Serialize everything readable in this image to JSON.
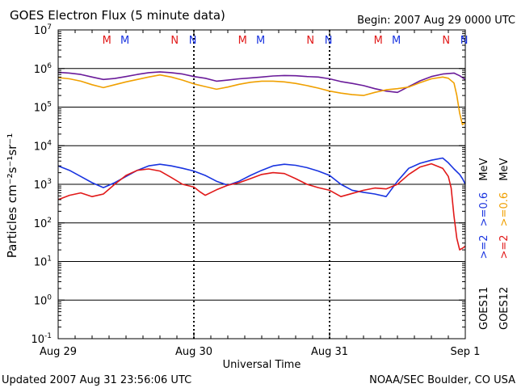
{
  "chart_data": {
    "type": "line",
    "title": "GOES Electron Flux (5 minute data)",
    "begin_label": "Begin: 2007 Aug 29 0000 UTC",
    "ylabel": "Particles cm⁻²s⁻¹sr⁻¹",
    "xlabel": "Universal Time",
    "footer_left": "Updated 2007 Aug 31 23:56:06 UTC",
    "footer_right": "NOAA/SEC Boulder, CO USA",
    "y_scale": "log",
    "ylim": [
      0.1,
      10000000
    ],
    "y_ticks": [
      {
        "base": "10",
        "exp": "7",
        "value": 10000000
      },
      {
        "base": "10",
        "exp": "6",
        "value": 1000000
      },
      {
        "base": "10",
        "exp": "5",
        "value": 100000
      },
      {
        "base": "10",
        "exp": "4",
        "value": 10000
      },
      {
        "base": "10",
        "exp": "3",
        "value": 1000
      },
      {
        "base": "10",
        "exp": "2",
        "value": 100
      },
      {
        "base": "10",
        "exp": "1",
        "value": 10
      },
      {
        "base": "10",
        "exp": "0",
        "value": 1
      },
      {
        "base": "10",
        "exp": "-1",
        "value": 0.1
      }
    ],
    "x_range_hours": [
      0,
      72
    ],
    "x_ticks": [
      {
        "label": "Aug 29",
        "hour": 0
      },
      {
        "label": "Aug 30",
        "hour": 24
      },
      {
        "label": "Aug 31",
        "hour": 48
      },
      {
        "label": "Sep 1",
        "hour": 72
      }
    ],
    "threshold_value": 1000,
    "grid": "horizontal lines at each decade; dotted vertical day lines",
    "markers": [
      {
        "label": "M",
        "hour": 8.6,
        "color": "#e11919"
      },
      {
        "label": "M",
        "hour": 11.8,
        "color": "#1934e0"
      },
      {
        "label": "N",
        "hour": 20.6,
        "color": "#e11919"
      },
      {
        "label": "N",
        "hour": 23.8,
        "color": "#1934e0"
      },
      {
        "label": "M",
        "hour": 32.6,
        "color": "#e11919"
      },
      {
        "label": "M",
        "hour": 35.8,
        "color": "#1934e0"
      },
      {
        "label": "N",
        "hour": 44.6,
        "color": "#e11919"
      },
      {
        "label": "N",
        "hour": 47.8,
        "color": "#1934e0"
      },
      {
        "label": "M",
        "hour": 56.6,
        "color": "#e11919"
      },
      {
        "label": "M",
        "hour": 59.8,
        "color": "#1934e0"
      },
      {
        "label": "N",
        "hour": 68.6,
        "color": "#e11919"
      },
      {
        "label": "N",
        "hour": 71.8,
        "color": "#1934e0"
      }
    ],
    "right_labels": [
      {
        "sat": "GOES11",
        "prefix": ">=2 >=0.6 MeV",
        "color": "#1934e0"
      },
      {
        "sat": "GOES12",
        "prefix": ">=2 >=0.6 MeV",
        "color": "#e11919"
      }
    ],
    "legend_label_parts": {
      "goes11": {
        "sat": "GOES11",
        "e2": ">=2",
        "e06": ">=0.6",
        "unit": "MeV",
        "e2_color": "#1934e0",
        "e06_color": "#6a1b9a"
      },
      "goes12": {
        "sat": "GOES12",
        "e2": ">=2",
        "e06": ">=0.6",
        "unit": "MeV",
        "e2_color": "#e11919",
        "e06_color": "#f0a000"
      }
    },
    "series": [
      {
        "name": "GOES11 >=0.6 MeV",
        "color": "#6a1b9a",
        "x": [
          0,
          2,
          4,
          6,
          8,
          10,
          12,
          14,
          16,
          18,
          20,
          22,
          24,
          26,
          28,
          30,
          32,
          34,
          36,
          38,
          40,
          42,
          44,
          46,
          48,
          50,
          52,
          54,
          56,
          58,
          60,
          62,
          64,
          66,
          68,
          70,
          71,
          72
        ],
        "y": [
          800000,
          760000,
          700000,
          600000,
          520000,
          550000,
          620000,
          700000,
          780000,
          820000,
          780000,
          720000,
          620000,
          560000,
          470000,
          500000,
          540000,
          570000,
          600000,
          640000,
          660000,
          650000,
          620000,
          600000,
          540000,
          460000,
          410000,
          360000,
          300000,
          260000,
          240000,
          340000,
          480000,
          620000,
          720000,
          760000,
          650000,
          520000
        ]
      },
      {
        "name": "GOES12 >=0.6 MeV",
        "color": "#f0a000",
        "x": [
          0,
          2,
          4,
          6,
          8,
          10,
          12,
          14,
          16,
          18,
          20,
          22,
          24,
          26,
          28,
          30,
          32,
          34,
          36,
          38,
          40,
          42,
          44,
          46,
          48,
          50,
          52,
          54,
          56,
          58,
          60,
          62,
          64,
          66,
          68,
          69,
          70,
          70.5,
          71,
          71.5,
          72
        ],
        "y": [
          580000,
          540000,
          470000,
          380000,
          320000,
          380000,
          450000,
          520000,
          600000,
          680000,
          600000,
          500000,
          400000,
          340000,
          290000,
          330000,
          390000,
          440000,
          470000,
          470000,
          450000,
          410000,
          360000,
          310000,
          260000,
          230000,
          210000,
          200000,
          240000,
          280000,
          300000,
          330000,
          430000,
          540000,
          600000,
          560000,
          420000,
          200000,
          70000,
          35000,
          40000
        ]
      },
      {
        "name": "GOES11 >=2 MeV",
        "color": "#1934e0",
        "x": [
          0,
          2,
          4,
          6,
          8,
          10,
          12,
          14,
          16,
          18,
          20,
          22,
          24,
          26,
          28,
          30,
          32,
          34,
          36,
          38,
          40,
          42,
          44,
          46,
          48,
          50,
          52,
          54,
          56,
          58,
          60,
          62,
          64,
          66,
          68,
          69,
          70,
          71,
          71.5,
          72
        ],
        "y": [
          3000,
          2300,
          1600,
          1100,
          820,
          1100,
          1600,
          2300,
          3000,
          3300,
          3000,
          2600,
          2200,
          1700,
          1200,
          950,
          1200,
          1700,
          2300,
          3000,
          3300,
          3100,
          2700,
          2200,
          1700,
          1000,
          700,
          620,
          560,
          480,
          1200,
          2600,
          3500,
          4200,
          4800,
          3600,
          2500,
          1800,
          1400,
          1000
        ]
      },
      {
        "name": "GOES12 >=2 MeV",
        "color": "#e11919",
        "x": [
          0,
          2,
          4,
          6,
          8,
          10,
          12,
          14,
          16,
          18,
          20,
          22,
          24,
          25,
          26,
          28,
          30,
          32,
          34,
          36,
          38,
          40,
          42,
          44,
          46,
          48,
          50,
          52,
          54,
          56,
          58,
          60,
          62,
          64,
          66,
          68,
          69,
          69.5,
          70,
          70.5,
          71,
          71.5,
          72
        ],
        "y": [
          400,
          520,
          600,
          480,
          560,
          1000,
          1700,
          2300,
          2500,
          2200,
          1500,
          1000,
          850,
          650,
          520,
          720,
          950,
          1100,
          1400,
          1800,
          2000,
          1900,
          1400,
          1000,
          820,
          700,
          480,
          580,
          700,
          800,
          760,
          1000,
          1800,
          2800,
          3400,
          2600,
          1600,
          800,
          150,
          40,
          20,
          22,
          25
        ]
      }
    ]
  }
}
